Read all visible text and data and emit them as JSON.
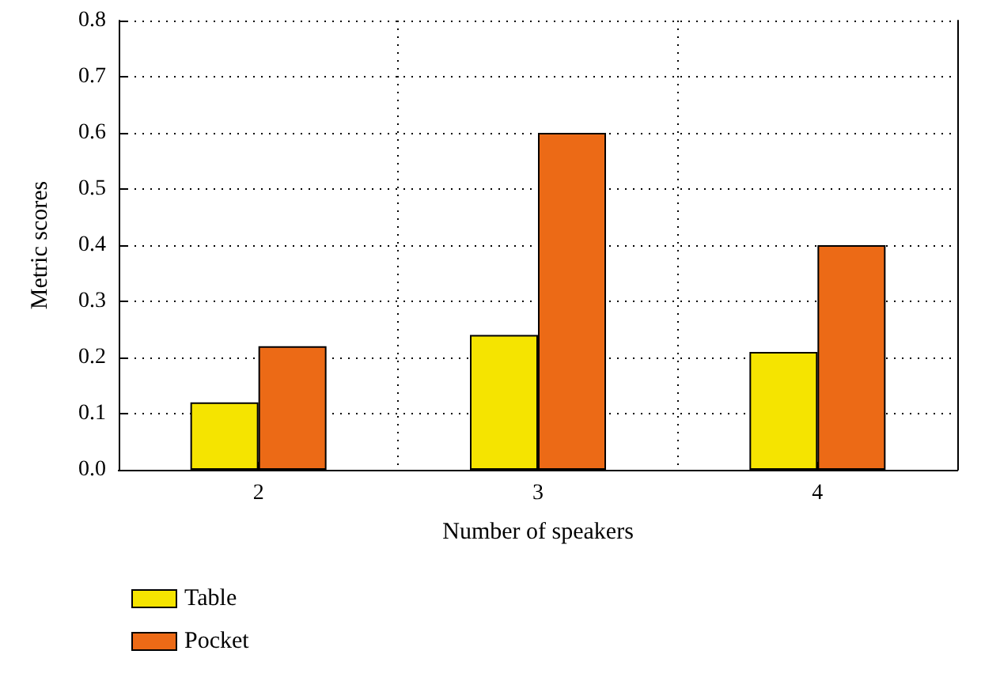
{
  "chart_data": {
    "type": "bar",
    "xlabel": "Number of speakers",
    "ylabel": "Metric scores",
    "categories": [
      "2",
      "3",
      "4"
    ],
    "series": [
      {
        "name": "Table",
        "color": "#f5e400",
        "values": [
          0.12,
          0.24,
          0.21
        ]
      },
      {
        "name": "Pocket",
        "color": "#ec6a16",
        "values": [
          0.22,
          0.6,
          0.4
        ]
      }
    ],
    "ylim": [
      0,
      0.8
    ],
    "yticks": [
      {
        "value": 0,
        "label": "0.0"
      },
      0.1,
      0.2,
      0.3,
      0.4,
      0.5,
      0.6,
      0.7,
      0.8
    ],
    "grid": true,
    "legend": "bottom left"
  }
}
